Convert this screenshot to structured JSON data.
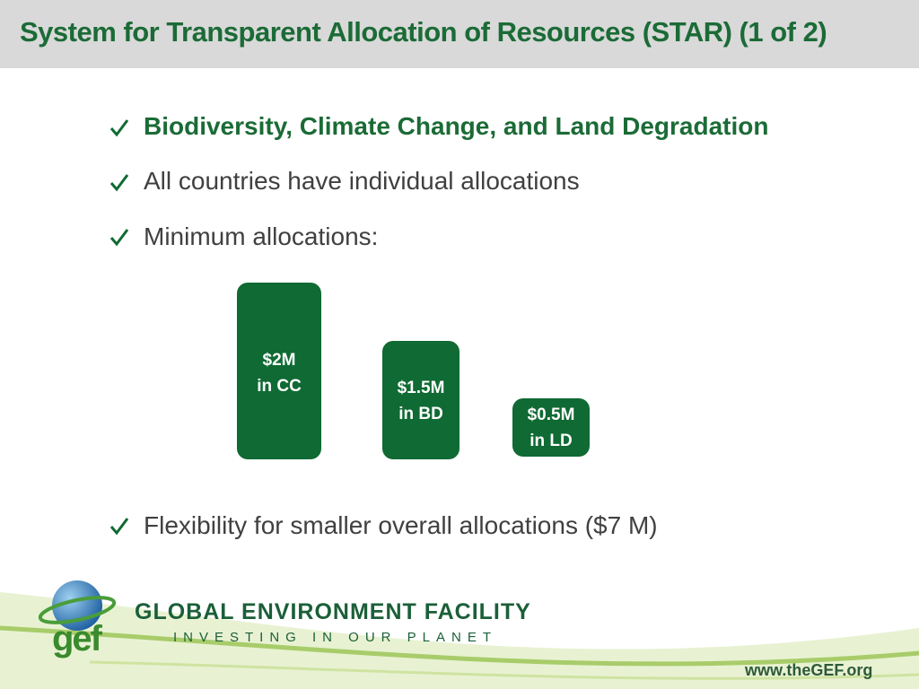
{
  "header": {
    "title": "System for Transparent Allocation of Resources (STAR) (1 of 2)"
  },
  "bullets": [
    "Biodiversity, Climate Change, and Land Degradation",
    "All countries have individual allocations",
    "Minimum allocations:",
    "Flexibility for smaller overall allocations ($7 M)"
  ],
  "boxes": [
    {
      "lines": [
        "$2M",
        "in CC"
      ]
    },
    {
      "lines": [
        "$1.5M",
        "in BD"
      ]
    },
    {
      "lines": [
        "$0.5M",
        "in LD"
      ]
    }
  ],
  "footer": {
    "logo": "gef",
    "organization": "GLOBAL ENVIRONMENT FACILITY",
    "tagline": "INVESTING IN OUR PLANET",
    "website": "www.theGEF.org"
  }
}
